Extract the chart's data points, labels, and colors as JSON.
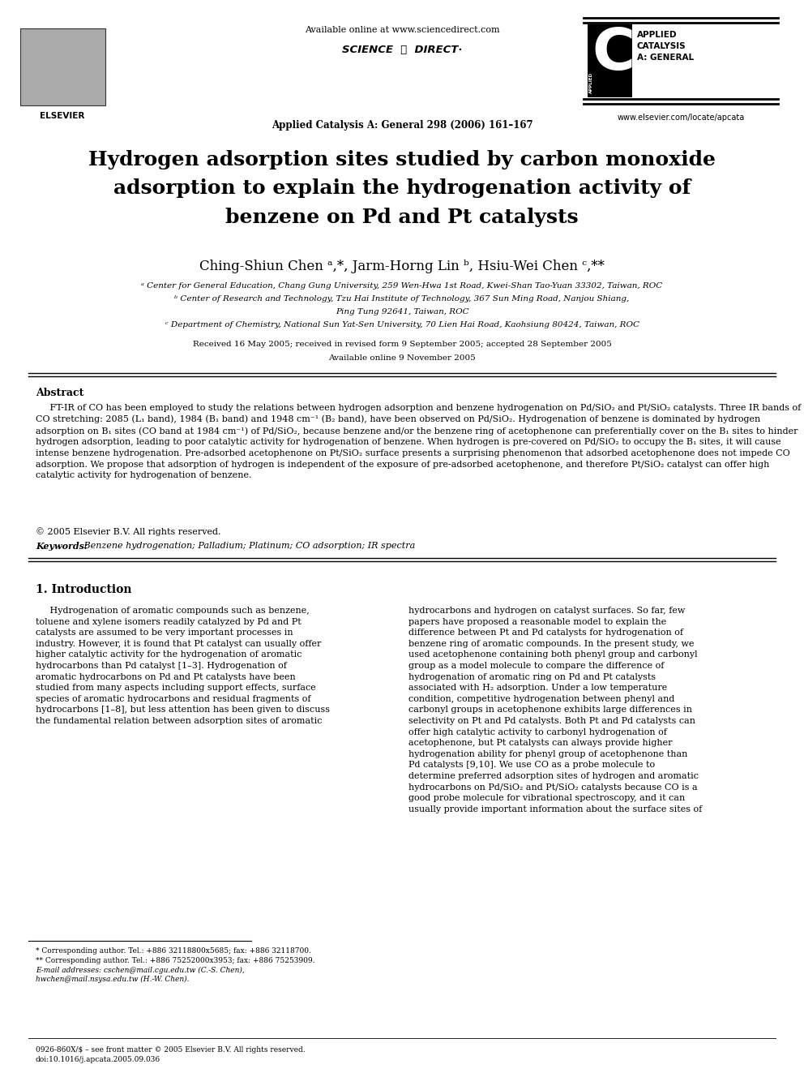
{
  "bg_color": "#ffffff",
  "page_width": 9.92,
  "page_height": 13.23,
  "dpi": 100,
  "header": {
    "available_online": "Available online at www.sciencedirect.com",
    "journal_line": "Applied Catalysis A: General 298 (2006) 161–167",
    "elsevier_text": "ELSEVIER",
    "journal_name_top": "APPLIED\nCATALYSIS\nA: GENERAL",
    "website": "www.elsevier.com/locate/apcata"
  },
  "title": "Hydrogen adsorption sites studied by carbon monoxide\nadsorption to explain the hydrogenation activity of\nbenzene on Pd and Pt catalysts",
  "authors": "Ching-Shiun Chen ᵃ,*, Jarm-Horng Lin ᵇ, Hsiu-Wei Chen ᶜ,**",
  "affiliations": [
    "ᵃ Center for General Education, Chang Gung University, 259 Wen-Hwa 1st Road, Kwei-Shan Tao-Yuan 33302, Taiwan, ROC",
    "ᵇ Center of Research and Technology, Tzu Hai Institute of Technology, 367 Sun Ming Road, Nanjou Shiang,",
    "Ping Tung 92641, Taiwan, ROC",
    "ᶜ Department of Chemistry, National Sun Yat-Sen University, 70 Lien Hai Road, Kaohsiung 80424, Taiwan, ROC"
  ],
  "dates": "Received 16 May 2005; received in revised form 9 September 2005; accepted 28 September 2005",
  "available_online_date": "Available online 9 November 2005",
  "abstract_title": "Abstract",
  "abstract_text": "FT-IR of CO has been employed to study the relations between hydrogen adsorption and benzene hydrogenation on Pd/SiO₂ and Pt/SiO₂ catalysts. Three IR bands of CO stretching: 2085 (L₁ band), 1984 (B₁ band) and 1948 cm⁻¹ (B₂ band), have been observed on Pd/SiO₂. Hydrogenation of benzene is dominated by hydrogen adsorption on B₁ sites (CO band at 1984 cm⁻¹) of Pd/SiO₂, because benzene and/or the benzene ring of acetophenone can preferentially cover on the B₁ sites to hinder hydrogen adsorption, leading to poor catalytic activity for hydrogenation of benzene. When hydrogen is pre-covered on Pd/SiO₂ to occupy the B₁ sites, it will cause intense benzene hydrogenation. Pre-adsorbed acetophenone on Pt/SiO₂ surface presents a surprising phenomenon that adsorbed acetophenone does not impede CO adsorption. We propose that adsorption of hydrogen is independent of the exposure of pre-adsorbed acetophenone, and therefore Pt/SiO₂ catalyst can offer high catalytic activity for hydrogenation of benzene.",
  "copyright": "© 2005 Elsevier B.V. All rights reserved.",
  "keywords_label": "Keywords:",
  "keywords": " Benzene hydrogenation; Palladium; Platinum; CO adsorption; IR spectra",
  "section1_title": "1. Introduction",
  "intro_left": "     Hydrogenation of aromatic compounds such as benzene,\ntoluene and xylene isomers readily catalyzed by Pd and Pt\ncatalysts are assumed to be very important processes in\nindustry. However, it is found that Pt catalyst can usually offer\nhigher catalytic activity for the hydrogenation of aromatic\nhydrocarbons than Pd catalyst [1–3]. Hydrogenation of\naromatic hydrocarbons on Pd and Pt catalysts have been\nstudied from many aspects including support effects, surface\nspecies of aromatic hydrocarbons and residual fragments of\nhydrocarbons [1–8], but less attention has been given to discuss\nthe fundamental relation between adsorption sites of aromatic",
  "intro_right": "hydrocarbons and hydrogen on catalyst surfaces. So far, few\npapers have proposed a reasonable model to explain the\ndifference between Pt and Pd catalysts for hydrogenation of\nbenzene ring of aromatic compounds. In the present study, we\nused acetophenone containing both phenyl group and carbonyl\ngroup as a model molecule to compare the difference of\nhydrogenation of aromatic ring on Pd and Pt catalysts\nassociated with H₂ adsorption. Under a low temperature\ncondition, competitive hydrogenation between phenyl and\ncarbonyl groups in acetophenone exhibits large differences in\nselectivity on Pt and Pd catalysts. Both Pt and Pd catalysts can\noffer high catalytic activity to carbonyl hydrogenation of\nacetophenone, but Pt catalysts can always provide higher\nhydrogenation ability for phenyl group of acetophenone than\nPd catalysts [9,10]. We use CO as a probe molecule to\ndetermine preferred adsorption sites of hydrogen and aromatic\nhydrocarbons on Pd/SiO₂ and Pt/SiO₂ catalysts because CO is a\ngood probe molecule for vibrational spectroscopy, and it can\nusually provide important information about the surface sites of",
  "footnote1": "* Corresponding author. Tel.: +886 32118800x5685; fax: +886 32118700.",
  "footnote2": "** Corresponding author. Tel.: +886 75252000x3953; fax: +886 75253909.",
  "footnote3": "E-mail addresses: cschen@mail.cgu.edu.tw (C.-S. Chen),",
  "footnote4": "hwchen@mail.nsysa.edu.tw (H.-W. Chen).",
  "bottom_line1": "0926-860X/$ – see front matter © 2005 Elsevier B.V. All rights reserved.",
  "bottom_line2": "doi:10.1016/j.apcata.2005.09.036"
}
